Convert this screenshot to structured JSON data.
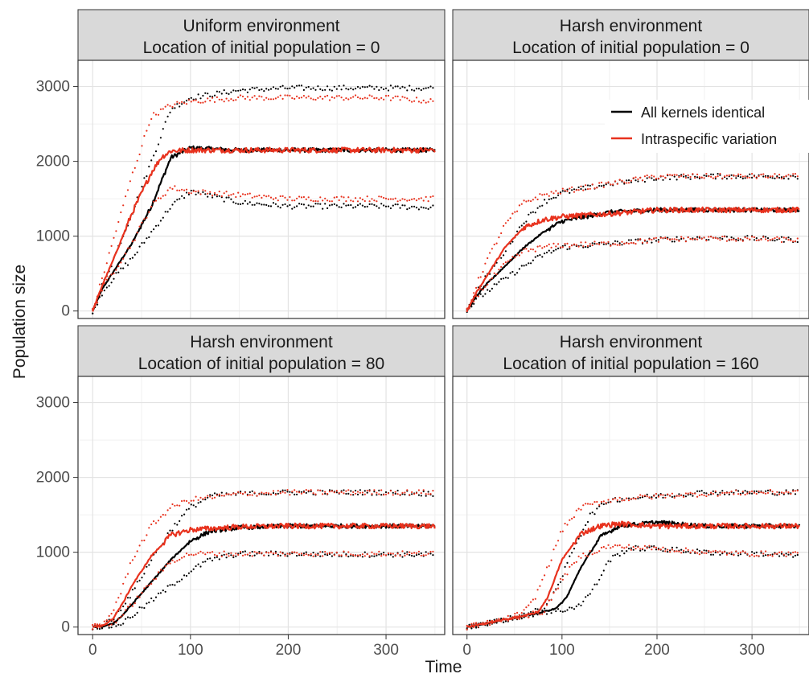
{
  "chart_data": {
    "type": "line",
    "xlabel": "Time",
    "ylabel": "Population size",
    "xlim": [
      -15,
      360
    ],
    "ylim": [
      -100,
      3350
    ],
    "x_ticks": [
      0,
      100,
      200,
      300
    ],
    "y_ticks": [
      0,
      1000,
      2000,
      3000
    ],
    "grid": true,
    "legend_position": "inside top-right of upper-right panel",
    "legend": [
      {
        "label": "All kernels identical",
        "color": "#000000"
      },
      {
        "label": "Intraspecific variation",
        "color": "#e8321e"
      }
    ],
    "panels": [
      {
        "title_line1": "Uniform environment",
        "title_line2": "Location of initial population = 0",
        "series": [
          {
            "name": "All kernels identical",
            "role": "mean",
            "x": [
              0,
              10,
              20,
              40,
              60,
              80,
              100,
              150,
              200,
              250,
              300,
              350
            ],
            "y": [
              0,
              300,
              500,
              900,
              1400,
              2050,
              2180,
              2150,
              2150,
              2150,
              2150,
              2150
            ]
          },
          {
            "name": "All kernels identical",
            "role": "upper",
            "x": [
              0,
              10,
              20,
              40,
              60,
              80,
              100,
              150,
              200,
              250,
              300,
              350
            ],
            "y": [
              0,
              350,
              650,
              1300,
              2000,
              2700,
              2850,
              2950,
              2980,
              2980,
              2980,
              2980
            ]
          },
          {
            "name": "All kernels identical",
            "role": "lower",
            "x": [
              0,
              10,
              20,
              40,
              60,
              80,
              100,
              150,
              200,
              250,
              300,
              350
            ],
            "y": [
              0,
              250,
              420,
              700,
              1050,
              1400,
              1600,
              1450,
              1400,
              1400,
              1400,
              1380
            ]
          },
          {
            "name": "Intraspecific variation",
            "role": "mean",
            "x": [
              0,
              10,
              20,
              40,
              60,
              70,
              80,
              100,
              150,
              200,
              250,
              300,
              350
            ],
            "y": [
              0,
              350,
              650,
              1300,
              1850,
              2050,
              2140,
              2150,
              2150,
              2150,
              2150,
              2150,
              2150
            ]
          },
          {
            "name": "Intraspecific variation",
            "role": "upper",
            "x": [
              0,
              10,
              20,
              40,
              60,
              80,
              100,
              150,
              200,
              250,
              300,
              350
            ],
            "y": [
              0,
              450,
              900,
              1800,
              2600,
              2750,
              2800,
              2850,
              2850,
              2850,
              2850,
              2800
            ]
          },
          {
            "name": "Intraspecific variation",
            "role": "lower",
            "x": [
              0,
              10,
              20,
              40,
              60,
              80,
              100,
              150,
              200,
              250,
              300,
              350
            ],
            "y": [
              0,
              300,
              500,
              900,
              1400,
              1650,
              1600,
              1550,
              1500,
              1500,
              1500,
              1500
            ]
          }
        ]
      },
      {
        "title_line1": "Harsh environment",
        "title_line2": "Location of initial population = 0",
        "series": [
          {
            "name": "All kernels identical",
            "role": "mean",
            "x": [
              0,
              10,
              20,
              40,
              60,
              80,
              100,
              150,
              200,
              250,
              300,
              350
            ],
            "y": [
              0,
              200,
              350,
              600,
              850,
              1050,
              1200,
              1320,
              1350,
              1350,
              1350,
              1350
            ]
          },
          {
            "name": "All kernels identical",
            "role": "upper",
            "x": [
              0,
              10,
              20,
              40,
              60,
              80,
              100,
              150,
              200,
              250,
              300,
              350
            ],
            "y": [
              0,
              250,
              450,
              800,
              1200,
              1450,
              1580,
              1700,
              1780,
              1800,
              1800,
              1800
            ]
          },
          {
            "name": "All kernels identical",
            "role": "lower",
            "x": [
              0,
              10,
              20,
              40,
              60,
              80,
              100,
              150,
              200,
              250,
              300,
              350
            ],
            "y": [
              0,
              150,
              250,
              430,
              600,
              750,
              850,
              900,
              950,
              980,
              970,
              950
            ]
          },
          {
            "name": "Intraspecific variation",
            "role": "mean",
            "x": [
              0,
              10,
              20,
              40,
              60,
              80,
              100,
              150,
              200,
              250,
              300,
              350
            ],
            "y": [
              0,
              250,
              450,
              850,
              1120,
              1220,
              1260,
              1300,
              1350,
              1350,
              1350,
              1350
            ]
          },
          {
            "name": "Intraspecific variation",
            "role": "upper",
            "x": [
              0,
              10,
              20,
              40,
              60,
              80,
              100,
              150,
              200,
              250,
              300,
              350
            ],
            "y": [
              0,
              350,
              650,
              1150,
              1450,
              1550,
              1600,
              1700,
              1800,
              1800,
              1800,
              1800
            ]
          },
          {
            "name": "Intraspecific variation",
            "role": "lower",
            "x": [
              0,
              10,
              20,
              40,
              60,
              80,
              100,
              150,
              200,
              250,
              300,
              350
            ],
            "y": [
              0,
              200,
              350,
              620,
              800,
              850,
              880,
              900,
              950,
              970,
              960,
              950
            ]
          }
        ]
      },
      {
        "title_line1": "Harsh environment",
        "title_line2": "Location of initial population = 80",
        "series": [
          {
            "name": "All kernels identical",
            "role": "mean",
            "x": [
              0,
              10,
              20,
              30,
              40,
              60,
              80,
              100,
              120,
              150,
              200,
              250,
              300,
              350
            ],
            "y": [
              0,
              10,
              40,
              150,
              300,
              600,
              900,
              1150,
              1280,
              1330,
              1350,
              1350,
              1350,
              1350
            ]
          },
          {
            "name": "All kernels identical",
            "role": "upper",
            "x": [
              0,
              10,
              20,
              40,
              60,
              80,
              100,
              120,
              150,
              200,
              250,
              300,
              350
            ],
            "y": [
              0,
              20,
              100,
              450,
              900,
              1300,
              1600,
              1750,
              1780,
              1800,
              1800,
              1800,
              1780
            ]
          },
          {
            "name": "All kernels identical",
            "role": "lower",
            "x": [
              0,
              10,
              20,
              30,
              40,
              60,
              80,
              100,
              120,
              150,
              200,
              250,
              300,
              350
            ],
            "y": [
              0,
              5,
              15,
              50,
              150,
              350,
              550,
              750,
              900,
              980,
              980,
              970,
              970,
              970
            ]
          },
          {
            "name": "Intraspecific variation",
            "role": "mean",
            "x": [
              0,
              10,
              20,
              30,
              40,
              60,
              80,
              100,
              150,
              200,
              250,
              300,
              350
            ],
            "y": [
              0,
              20,
              100,
              300,
              550,
              950,
              1230,
              1300,
              1340,
              1350,
              1350,
              1350,
              1350
            ]
          },
          {
            "name": "Intraspecific variation",
            "role": "upper",
            "x": [
              0,
              10,
              20,
              30,
              40,
              60,
              80,
              100,
              150,
              200,
              250,
              300,
              350
            ],
            "y": [
              0,
              30,
              200,
              500,
              900,
              1350,
              1600,
              1700,
              1780,
              1800,
              1800,
              1800,
              1800
            ]
          },
          {
            "name": "Intraspecific variation",
            "role": "lower",
            "x": [
              0,
              10,
              20,
              30,
              40,
              60,
              80,
              100,
              150,
              200,
              250,
              300,
              350
            ],
            "y": [
              0,
              10,
              50,
              150,
              300,
              600,
              880,
              980,
              980,
              980,
              980,
              980,
              980
            ]
          }
        ]
      },
      {
        "title_line1": "Harsh environment",
        "title_line2": "Location of initial population = 160",
        "series": [
          {
            "name": "All kernels identical",
            "role": "mean",
            "x": [
              0,
              20,
              40,
              60,
              80,
              95,
              105,
              120,
              140,
              160,
              200,
              250,
              300,
              350
            ],
            "y": [
              0,
              50,
              100,
              150,
              200,
              260,
              400,
              800,
              1200,
              1350,
              1400,
              1350,
              1350,
              1350
            ]
          },
          {
            "name": "All kernels identical",
            "role": "upper",
            "x": [
              0,
              20,
              40,
              60,
              80,
              95,
              110,
              130,
              150,
              200,
              250,
              300,
              350
            ],
            "y": [
              0,
              50,
              100,
              150,
              250,
              500,
              1000,
              1500,
              1700,
              1750,
              1800,
              1800,
              1800
            ]
          },
          {
            "name": "All kernels identical",
            "role": "lower",
            "x": [
              0,
              20,
              40,
              60,
              80,
              100,
              120,
              135,
              150,
              170,
              200,
              250,
              300,
              350
            ],
            "y": [
              0,
              50,
              100,
              150,
              200,
              220,
              300,
              550,
              900,
              1050,
              1050,
              1000,
              980,
              950
            ]
          },
          {
            "name": "Intraspecific variation",
            "role": "mean",
            "x": [
              0,
              20,
              40,
              60,
              75,
              85,
              100,
              120,
              140,
              160,
              200,
              250,
              300,
              350
            ],
            "y": [
              0,
              50,
              100,
              150,
              200,
              400,
              900,
              1250,
              1350,
              1380,
              1350,
              1350,
              1350,
              1350
            ]
          },
          {
            "name": "Intraspecific variation",
            "role": "upper",
            "x": [
              0,
              20,
              40,
              60,
              70,
              85,
              100,
              120,
              150,
              200,
              250,
              300,
              350
            ],
            "y": [
              0,
              50,
              100,
              200,
              350,
              800,
              1300,
              1600,
              1700,
              1750,
              1780,
              1800,
              1800
            ]
          },
          {
            "name": "Intraspecific variation",
            "role": "lower",
            "x": [
              0,
              20,
              40,
              60,
              80,
              90,
              100,
              120,
              150,
              200,
              250,
              300,
              350
            ],
            "y": [
              0,
              50,
              100,
              150,
              200,
              400,
              650,
              950,
              1080,
              1050,
              1000,
              980,
              980
            ]
          }
        ]
      }
    ]
  }
}
